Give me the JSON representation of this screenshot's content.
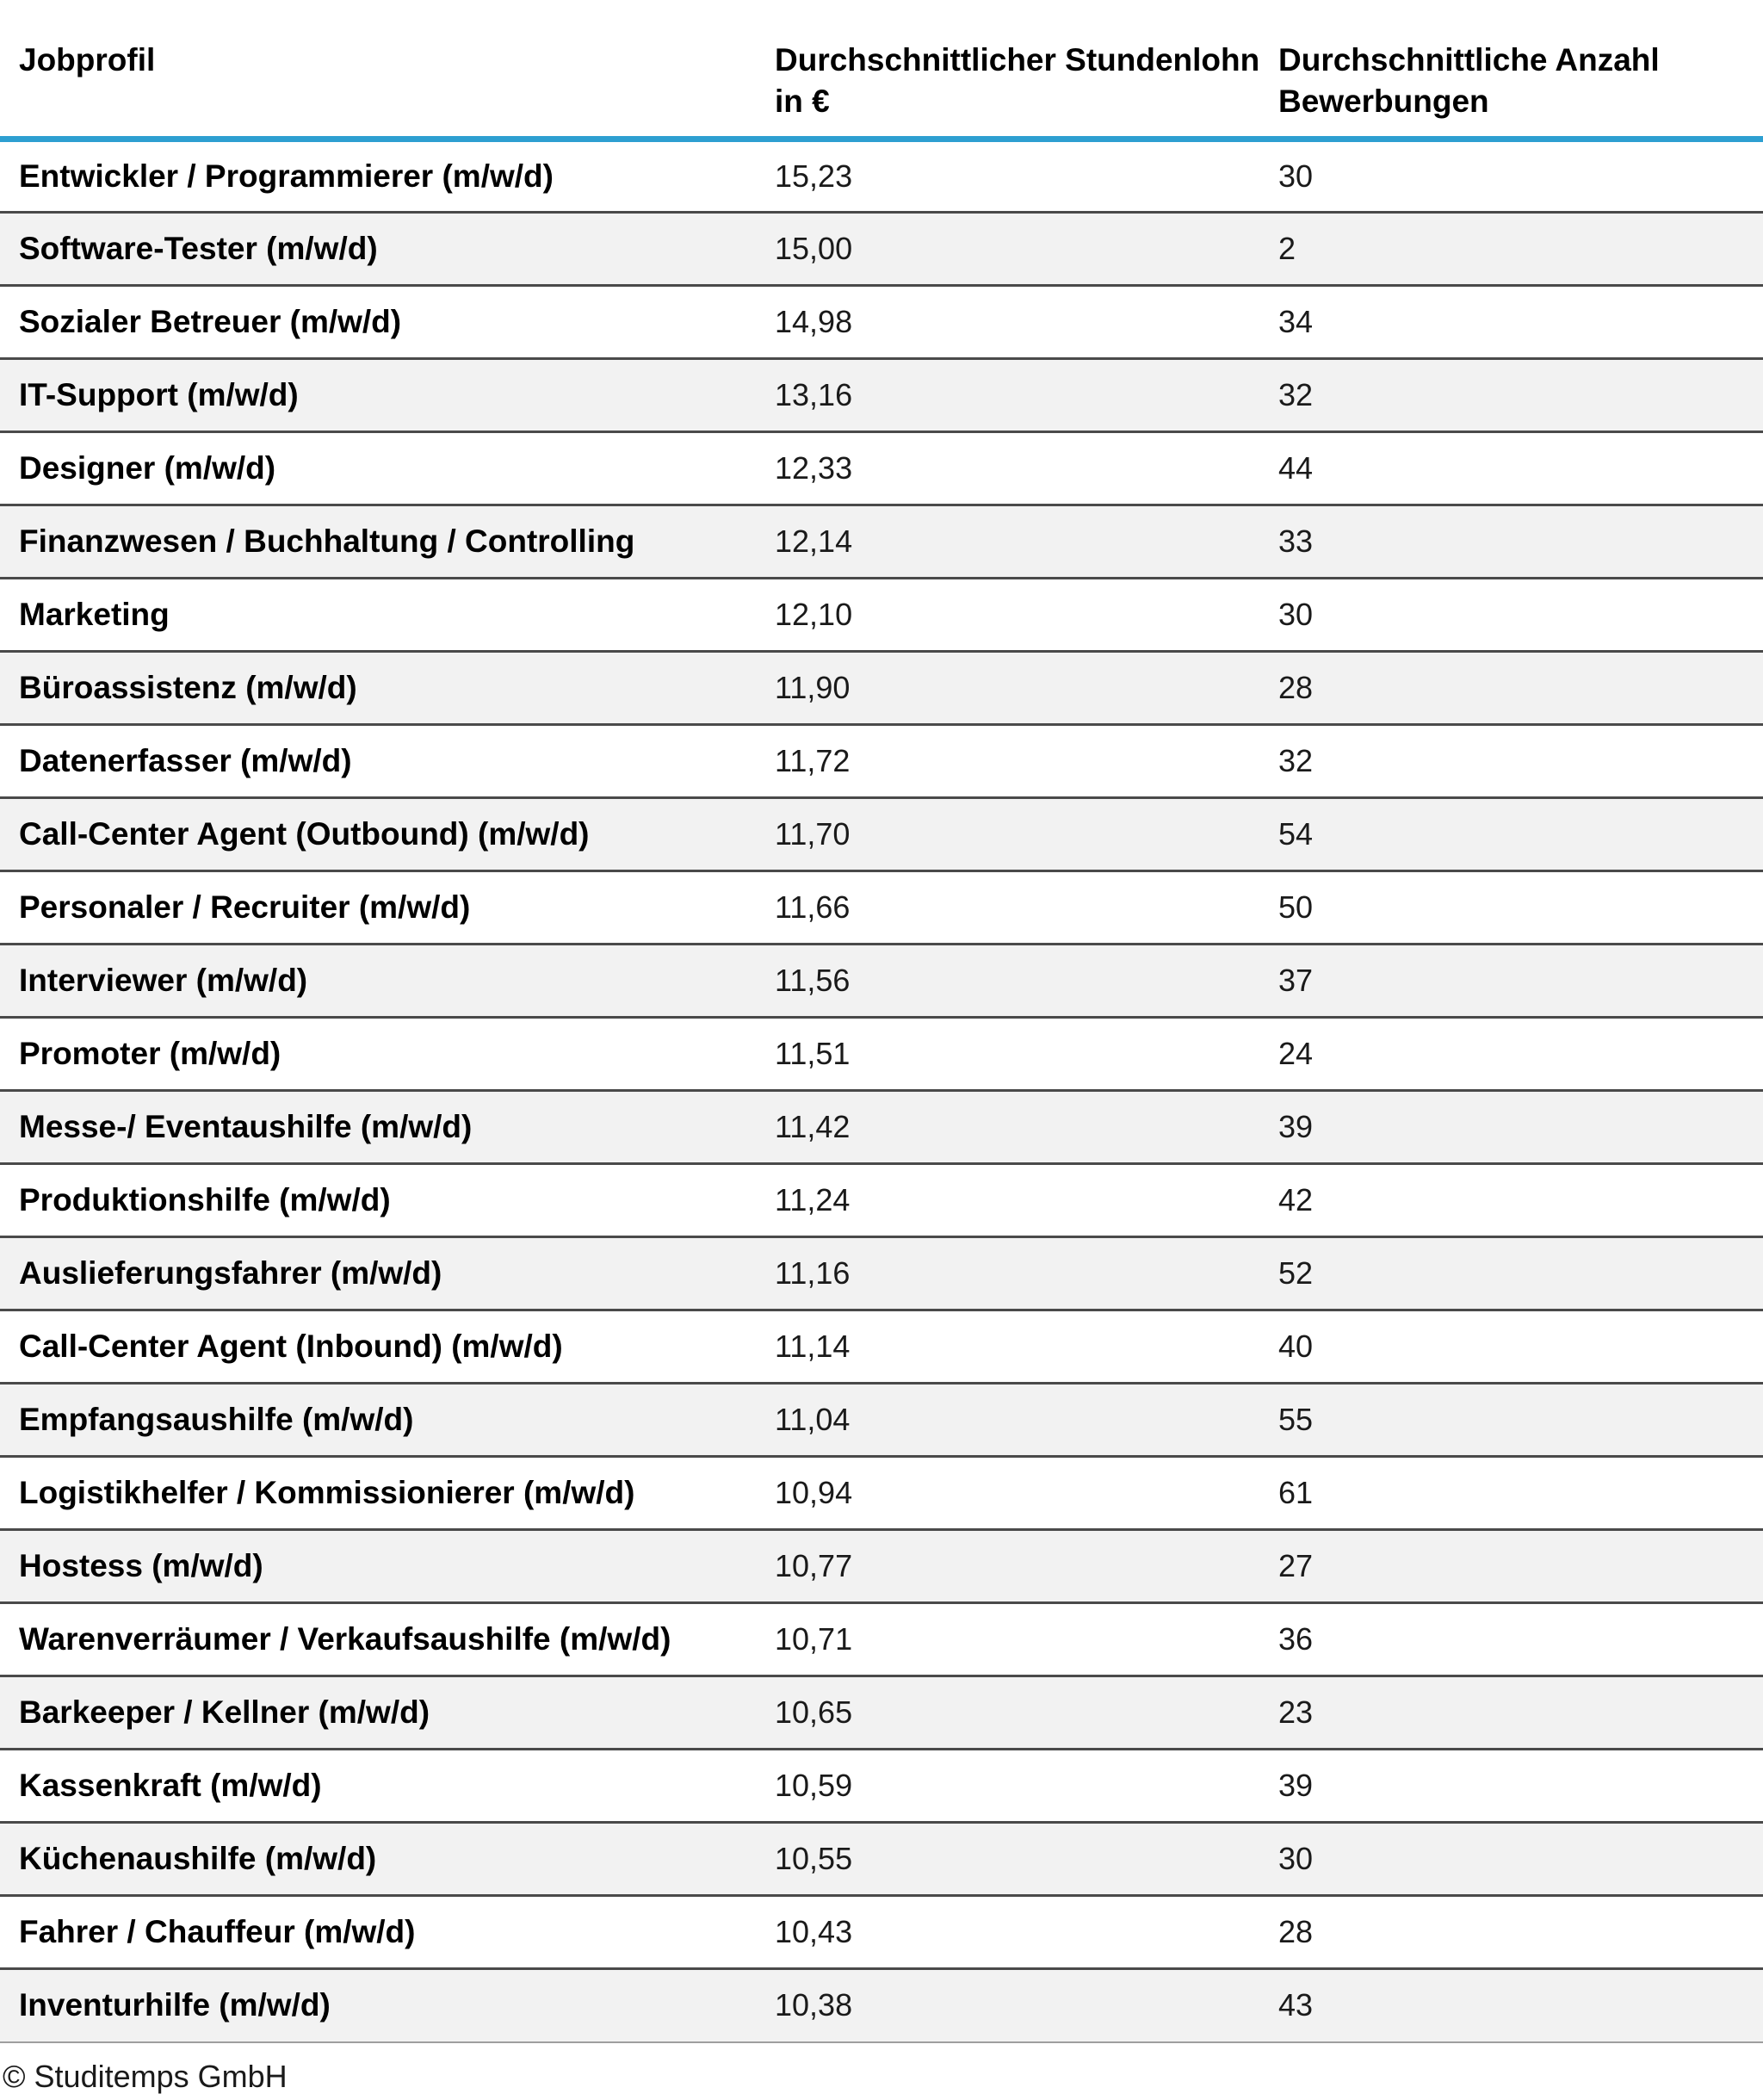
{
  "colors": {
    "accent_line": "#2d9fd1",
    "row_alt": "#f2f2f2",
    "row_border": "#4a4a4a",
    "text": "#111111"
  },
  "table": {
    "columns": [
      "Jobprofil",
      "Durchschnittlicher Stundenlohn in €",
      "Durchschnittliche Anzahl Bewerbungen"
    ],
    "rows": [
      {
        "profile": "Entwickler / Programmierer (m/w/d)",
        "wage": "15,23",
        "applications": "30"
      },
      {
        "profile": "Software-Tester (m/w/d)",
        "wage": "15,00",
        "applications": "2"
      },
      {
        "profile": "Sozialer Betreuer (m/w/d)",
        "wage": "14,98",
        "applications": "34"
      },
      {
        "profile": "IT-Support (m/w/d)",
        "wage": "13,16",
        "applications": "32"
      },
      {
        "profile": "Designer (m/w/d)",
        "wage": "12,33",
        "applications": "44"
      },
      {
        "profile": "Finanzwesen / Buchhaltung / Controlling",
        "wage": "12,14",
        "applications": "33"
      },
      {
        "profile": "Marketing",
        "wage": "12,10",
        "applications": "30"
      },
      {
        "profile": "Büroassistenz (m/w/d)",
        "wage": "11,90",
        "applications": "28"
      },
      {
        "profile": "Datenerfasser (m/w/d)",
        "wage": "11,72",
        "applications": "32"
      },
      {
        "profile": "Call-Center Agent (Outbound) (m/w/d)",
        "wage": "11,70",
        "applications": "54"
      },
      {
        "profile": "Personaler / Recruiter (m/w/d)",
        "wage": "11,66",
        "applications": "50"
      },
      {
        "profile": "Interviewer (m/w/d)",
        "wage": "11,56",
        "applications": "37"
      },
      {
        "profile": "Promoter (m/w/d)",
        "wage": "11,51",
        "applications": "24"
      },
      {
        "profile": "Messe-/ Eventaushilfe (m/w/d)",
        "wage": "11,42",
        "applications": "39"
      },
      {
        "profile": "Produktionshilfe (m/w/d)",
        "wage": "11,24",
        "applications": "42"
      },
      {
        "profile": "Auslieferungsfahrer (m/w/d)",
        "wage": "11,16",
        "applications": "52"
      },
      {
        "profile": "Call-Center Agent (Inbound) (m/w/d)",
        "wage": "11,14",
        "applications": "40"
      },
      {
        "profile": "Empfangsaushilfe (m/w/d)",
        "wage": "11,04",
        "applications": "55"
      },
      {
        "profile": "Logistikhelfer / Kommissionierer (m/w/d)",
        "wage": "10,94",
        "applications": "61"
      },
      {
        "profile": "Hostess (m/w/d)",
        "wage": "10,77",
        "applications": "27"
      },
      {
        "profile": "Warenverräumer / Verkaufsaushilfe (m/w/d)",
        "wage": "10,71",
        "applications": "36"
      },
      {
        "profile": "Barkeeper / Kellner (m/w/d)",
        "wage": "10,65",
        "applications": "23"
      },
      {
        "profile": "Kassenkraft (m/w/d)",
        "wage": "10,59",
        "applications": "39"
      },
      {
        "profile": "Küchenaushilfe (m/w/d)",
        "wage": "10,55",
        "applications": "30"
      },
      {
        "profile": "Fahrer / Chauffeur (m/w/d)",
        "wage": "10,43",
        "applications": "28"
      },
      {
        "profile": "Inventurhilfe (m/w/d)",
        "wage": "10,38",
        "applications": "43"
      }
    ]
  },
  "footer": {
    "copyright": "© Studitemps GmbH"
  },
  "chart_data": {
    "type": "table",
    "title": "",
    "categories": [
      "Entwickler / Programmierer (m/w/d)",
      "Software-Tester (m/w/d)",
      "Sozialer Betreuer (m/w/d)",
      "IT-Support (m/w/d)",
      "Designer (m/w/d)",
      "Finanzwesen / Buchhaltung / Controlling",
      "Marketing",
      "Büroassistenz (m/w/d)",
      "Datenerfasser (m/w/d)",
      "Call-Center Agent (Outbound) (m/w/d)",
      "Personaler / Recruiter (m/w/d)",
      "Interviewer (m/w/d)",
      "Promoter (m/w/d)",
      "Messe-/ Eventaushilfe (m/w/d)",
      "Produktionshilfe (m/w/d)",
      "Auslieferungsfahrer (m/w/d)",
      "Call-Center Agent (Inbound) (m/w/d)",
      "Empfangsaushilfe (m/w/d)",
      "Logistikhelfer / Kommissionierer (m/w/d)",
      "Hostess (m/w/d)",
      "Warenverräumer / Verkaufsaushilfe (m/w/d)",
      "Barkeeper / Kellner (m/w/d)",
      "Kassenkraft (m/w/d)",
      "Küchenaushilfe (m/w/d)",
      "Fahrer / Chauffeur (m/w/d)",
      "Inventurhilfe (m/w/d)"
    ],
    "series": [
      {
        "name": "Durchschnittlicher Stundenlohn in €",
        "values": [
          15.23,
          15.0,
          14.98,
          13.16,
          12.33,
          12.14,
          12.1,
          11.9,
          11.72,
          11.7,
          11.66,
          11.56,
          11.51,
          11.42,
          11.24,
          11.16,
          11.14,
          11.04,
          10.94,
          10.77,
          10.71,
          10.65,
          10.59,
          10.55,
          10.43,
          10.38
        ]
      },
      {
        "name": "Durchschnittliche Anzahl Bewerbungen",
        "values": [
          30,
          2,
          34,
          32,
          44,
          33,
          30,
          28,
          32,
          54,
          50,
          37,
          24,
          39,
          42,
          52,
          40,
          55,
          61,
          27,
          36,
          23,
          39,
          30,
          28,
          43
        ]
      }
    ]
  }
}
